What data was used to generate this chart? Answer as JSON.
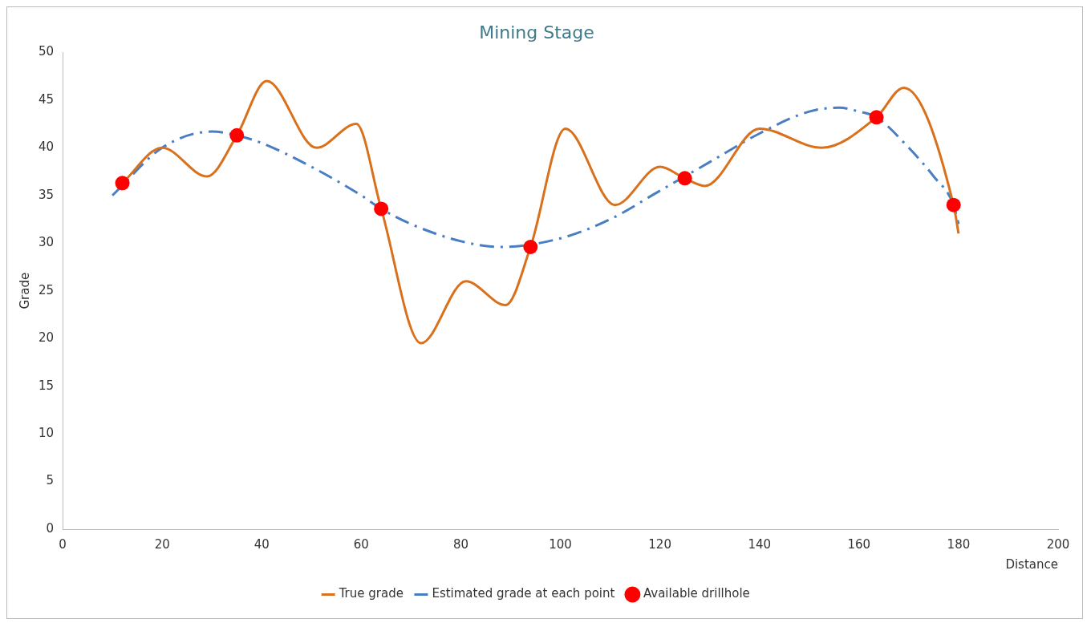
{
  "chart_data": {
    "type": "line",
    "title": "Mining Stage",
    "xlabel": "Distance",
    "ylabel": "Grade",
    "xlim": [
      0,
      200
    ],
    "xticks": [
      0,
      20,
      40,
      60,
      80,
      100,
      120,
      140,
      160,
      180,
      200
    ],
    "ylim": [
      0,
      50
    ],
    "yticks": [
      0,
      5,
      10,
      15,
      20,
      25,
      30,
      35,
      40,
      45,
      50
    ],
    "grid": false,
    "legend": "bottom",
    "series": [
      {
        "name": "True grade",
        "type": "line",
        "color": "#d9711c",
        "line_style": "solid",
        "marker": "none",
        "x": [
          12,
          20,
          29,
          35,
          41,
          51,
          59,
          64,
          72,
          81,
          89,
          94,
          101,
          111,
          120,
          125,
          129,
          140,
          152.5,
          163.5,
          169,
          179,
          180
        ],
        "values": [
          36.3,
          40,
          37,
          41.3,
          47,
          40,
          42.5,
          33.6,
          19.5,
          26,
          23.5,
          29.6,
          42,
          34,
          38,
          36.8,
          36,
          42,
          40,
          43.2,
          46.3,
          34,
          31
        ]
      },
      {
        "name": "Estimated grade at each point",
        "type": "line",
        "color": "#4a7ec2",
        "line_style": "dashed",
        "marker": "none",
        "x": [
          10,
          20,
          30,
          35,
          40,
          50,
          60,
          64,
          70,
          80,
          88,
          100,
          110,
          120,
          125,
          130,
          140,
          150,
          156,
          160,
          163.5,
          170,
          175,
          179,
          180
        ],
        "values": [
          35,
          40,
          41.7,
          41.3,
          40.5,
          38,
          35,
          33.6,
          32,
          30.2,
          29.6,
          30.5,
          32.5,
          35.5,
          37,
          38.5,
          41.5,
          43.8,
          44.2,
          43.8,
          43.2,
          40,
          37,
          34,
          32
        ]
      },
      {
        "name": "Available drillhole",
        "type": "scatter",
        "color": "#ff0000",
        "marker": "circle",
        "x": [
          12,
          35,
          64,
          94,
          125,
          163.5,
          179
        ],
        "values": [
          36.3,
          41.3,
          33.6,
          29.6,
          36.8,
          43.2,
          34
        ]
      }
    ]
  }
}
